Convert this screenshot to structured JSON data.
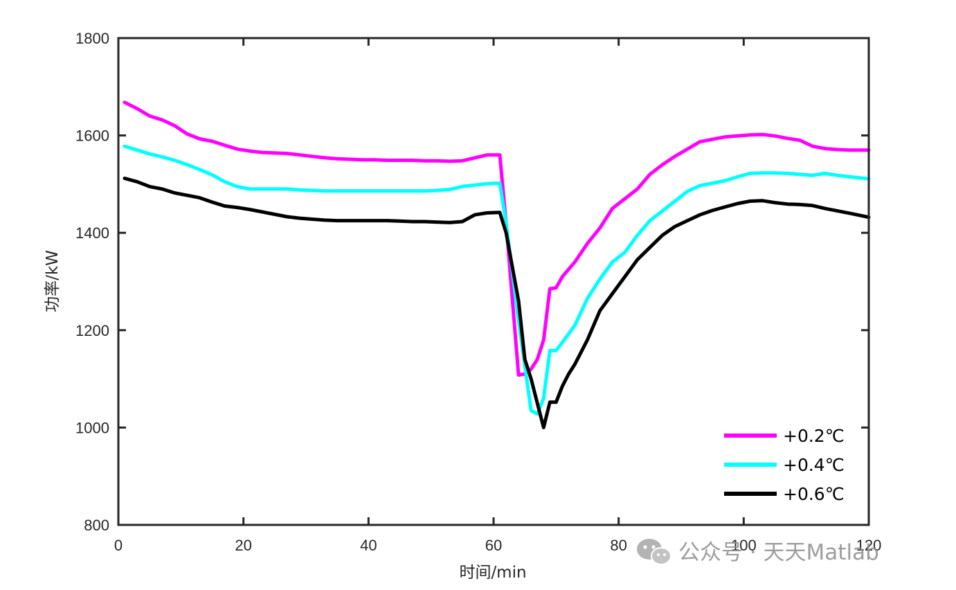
{
  "chart_data": {
    "type": "line",
    "title": "",
    "xlabel": "时间/min",
    "ylabel": "功率/kW",
    "xlim": [
      0,
      120
    ],
    "ylim": [
      800,
      1800
    ],
    "xticks": [
      0,
      20,
      40,
      60,
      80,
      100,
      120
    ],
    "yticks": [
      800,
      1000,
      1200,
      1400,
      1600,
      1800
    ],
    "grid": false,
    "legend_position": "bottom-right",
    "series": [
      {
        "name": "+0.2℃",
        "color": "#ff00ff",
        "x": [
          1,
          3,
          5,
          7,
          9,
          11,
          13,
          15,
          17,
          19,
          21,
          23,
          25,
          27,
          29,
          31,
          33,
          35,
          37,
          39,
          41,
          43,
          45,
          47,
          49,
          51,
          53,
          55,
          57,
          59,
          61,
          62,
          64,
          65,
          66,
          67,
          68,
          69,
          70,
          71,
          73,
          75,
          77,
          79,
          81,
          83,
          85,
          87,
          89,
          91,
          93,
          95,
          97,
          99,
          101,
          103,
          105,
          107,
          109,
          111,
          113,
          115,
          117,
          120
        ],
        "y": [
          1668,
          1655,
          1640,
          1632,
          1620,
          1603,
          1593,
          1588,
          1580,
          1572,
          1568,
          1565,
          1564,
          1563,
          1560,
          1557,
          1554,
          1552,
          1551,
          1550,
          1550,
          1549,
          1549,
          1549,
          1548,
          1548,
          1547,
          1548,
          1554,
          1560,
          1560,
          1420,
          1108,
          1110,
          1120,
          1140,
          1180,
          1285,
          1287,
          1310,
          1340,
          1378,
          1410,
          1450,
          1470,
          1490,
          1520,
          1540,
          1557,
          1572,
          1587,
          1592,
          1597,
          1599,
          1601,
          1602,
          1599,
          1594,
          1590,
          1578,
          1573,
          1571,
          1570,
          1570
        ]
      },
      {
        "name": "+0.4℃",
        "color": "#00ffff",
        "x": [
          1,
          3,
          5,
          7,
          9,
          11,
          13,
          15,
          17,
          19,
          21,
          23,
          25,
          27,
          29,
          31,
          33,
          35,
          37,
          39,
          41,
          43,
          45,
          47,
          49,
          51,
          53,
          55,
          57,
          59,
          61,
          62,
          64,
          66,
          67,
          68,
          69,
          70,
          71,
          73,
          75,
          77,
          79,
          81,
          83,
          85,
          87,
          89,
          91,
          93,
          95,
          97,
          99,
          101,
          103,
          105,
          107,
          109,
          111,
          113,
          115,
          117,
          120
        ],
        "y": [
          1578,
          1570,
          1562,
          1556,
          1549,
          1540,
          1530,
          1519,
          1505,
          1495,
          1490,
          1490,
          1490,
          1490,
          1488,
          1487,
          1486,
          1486,
          1486,
          1486,
          1486,
          1486,
          1486,
          1486,
          1486,
          1487,
          1489,
          1495,
          1498,
          1501,
          1502,
          1420,
          1220,
          1035,
          1028,
          1060,
          1158,
          1158,
          1175,
          1210,
          1265,
          1305,
          1340,
          1360,
          1395,
          1425,
          1445,
          1465,
          1485,
          1497,
          1502,
          1507,
          1515,
          1522,
          1523,
          1523,
          1522,
          1520,
          1518,
          1522,
          1518,
          1515,
          1511
        ]
      },
      {
        "name": "+0.6℃",
        "color": "#000000",
        "x": [
          1,
          3,
          5,
          7,
          9,
          11,
          13,
          15,
          17,
          19,
          21,
          23,
          25,
          27,
          29,
          31,
          33,
          35,
          37,
          39,
          41,
          43,
          45,
          47,
          49,
          51,
          53,
          55,
          57,
          59,
          61,
          62,
          64,
          65,
          66,
          67,
          68,
          69,
          70,
          71,
          72,
          73,
          75,
          77,
          79,
          81,
          83,
          85,
          87,
          89,
          91,
          93,
          95,
          97,
          99,
          101,
          103,
          105,
          107,
          109,
          111,
          113,
          115,
          117,
          120
        ],
        "y": [
          1512,
          1505,
          1495,
          1490,
          1482,
          1477,
          1472,
          1463,
          1455,
          1452,
          1448,
          1443,
          1438,
          1433,
          1430,
          1428,
          1426,
          1425,
          1425,
          1425,
          1425,
          1425,
          1424,
          1423,
          1423,
          1422,
          1421,
          1423,
          1437,
          1441,
          1442,
          1400,
          1260,
          1140,
          1100,
          1050,
          1000,
          1052,
          1052,
          1085,
          1110,
          1130,
          1180,
          1240,
          1275,
          1310,
          1345,
          1370,
          1395,
          1413,
          1425,
          1437,
          1446,
          1453,
          1460,
          1465,
          1466,
          1462,
          1459,
          1458,
          1456,
          1450,
          1445,
          1440,
          1432
        ]
      }
    ]
  },
  "watermark": {
    "text": "公众号 · 天天Matlab",
    "icon": "wechat-icon"
  }
}
